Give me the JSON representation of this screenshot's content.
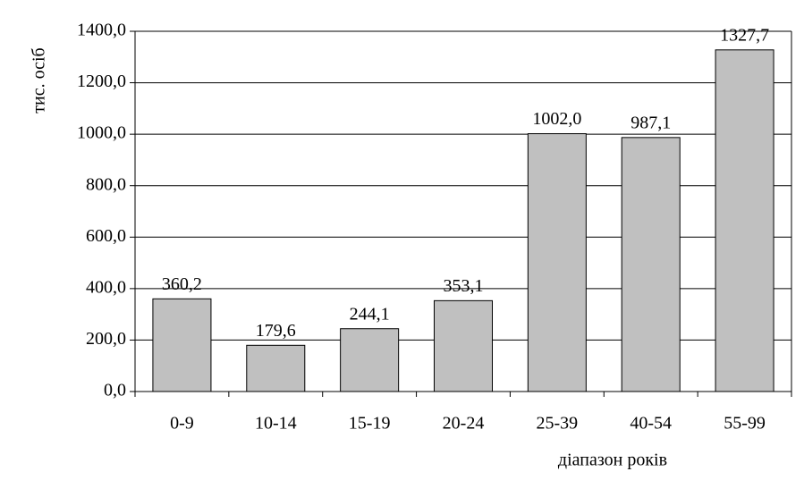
{
  "chart_data": {
    "type": "bar",
    "y_axis_label": "тис. осіб",
    "x_axis_label": "діапазон років",
    "categories": [
      "0-9",
      "10-14",
      "15-19",
      "20-24",
      "25-39",
      "40-54",
      "55-99"
    ],
    "values": [
      360.2,
      179.6,
      244.1,
      353.1,
      1002.0,
      987.1,
      1327.7
    ],
    "value_labels": [
      "360,2",
      "179,6",
      "244,1",
      "353,1",
      "1002,0",
      "987,1",
      "1327,7"
    ],
    "color": "#c0c0c0",
    "ylim": [
      0,
      1400
    ],
    "yticks": [
      {
        "value": 0,
        "label": "0,0"
      },
      {
        "value": 200,
        "label": "200,0"
      },
      {
        "value": 400,
        "label": "400,0"
      },
      {
        "value": 600,
        "label": "600,0"
      },
      {
        "value": 800,
        "label": "800,0"
      },
      {
        "value": 1000,
        "label": "1000,0"
      },
      {
        "value": 1200,
        "label": "1200,0"
      },
      {
        "value": 1400,
        "label": "1400,0"
      }
    ],
    "grid": true
  }
}
